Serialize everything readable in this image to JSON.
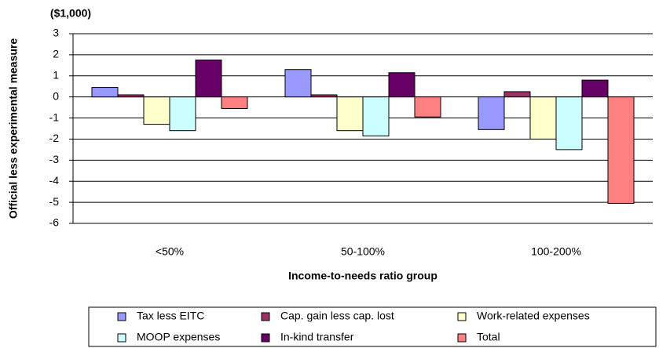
{
  "chart_data": {
    "type": "bar",
    "unit_label": "($1,000)",
    "y_label": "Official less experimental measure",
    "x_label": "Income-to-needs ratio group",
    "categories": [
      "<50%",
      "50-100%",
      "100-200%"
    ],
    "series": [
      {
        "name": "Tax less EITC",
        "color": "#9999ff",
        "values": [
          0.45,
          1.3,
          -1.55
        ]
      },
      {
        "name": "Cap. gain less cap. lost",
        "color": "#993366",
        "values": [
          0.1,
          0.1,
          0.25
        ]
      },
      {
        "name": "Work-related expenses",
        "color": "#ffffcc",
        "values": [
          -1.3,
          -1.6,
          -2.0
        ]
      },
      {
        "name": "MOOP expenses",
        "color": "#ccffff",
        "values": [
          -1.6,
          -1.85,
          -2.5
        ]
      },
      {
        "name": "In-kind transfer",
        "color": "#660066",
        "values": [
          1.75,
          1.15,
          0.8
        ]
      },
      {
        "name": "Total",
        "color": "#ff8080",
        "values": [
          -0.55,
          -0.95,
          -5.05
        ]
      }
    ],
    "ylim": [
      -6,
      3
    ],
    "yticks": [
      -6,
      -5,
      -4,
      -3,
      -2,
      -1,
      0,
      1,
      2,
      3
    ],
    "grid": true
  }
}
